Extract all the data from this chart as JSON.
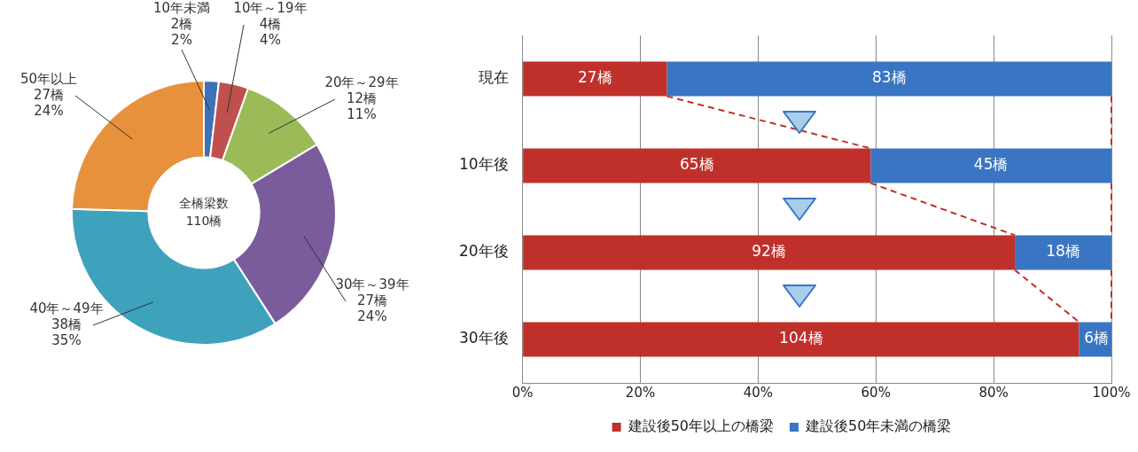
{
  "chart_data": [
    {
      "type": "donut",
      "categories": [
        "10年未満",
        "10年～19年",
        "20年～29年",
        "30年～39年",
        "40年～49年",
        "50年以上"
      ],
      "values": [
        2,
        4,
        12,
        27,
        38,
        27
      ],
      "colors": [
        "#3d72b8",
        "#c0504d",
        "#9bbb59",
        "#7a5c9c",
        "#3fa2bd",
        "#e8913d"
      ],
      "value_labels": [
        "2橋\n2%",
        "4橋\n4%",
        "12橋\n11%",
        "27橋\n24%",
        "38橋\n35%",
        "27橋\n24%"
      ],
      "annotations": [
        "全橋梁数\n110橋"
      ]
    },
    {
      "type": "bar",
      "orientation": "horizontal",
      "stacked": true,
      "categories": [
        "現在",
        "10年後",
        "20年後",
        "30年後"
      ],
      "series": [
        {
          "name": "建設後50年以上の橋梁",
          "color": "#c0302b",
          "values": [
            24.5,
            59.1,
            83.6,
            94.5
          ]
        },
        {
          "name": "建設後50年未満の橋梁",
          "color": "#3a75c4",
          "values": [
            75.5,
            40.9,
            16.4,
            5.5
          ]
        }
      ],
      "annotations": [
        "27橋",
        "65橋",
        "92橋",
        "104橋",
        "83橋",
        "45橋",
        "18橋",
        {
          "text": "6橋",
          "x": 100,
          "y": "30年後"
        }
      ],
      "xlim": [
        0,
        100
      ],
      "xticks": [
        {
          "value": 0,
          "label": "0%"
        },
        {
          "value": 20,
          "label": "20%"
        },
        {
          "value": 40,
          "label": "40%"
        },
        {
          "value": 60,
          "label": "60%"
        },
        {
          "value": 80,
          "label": "80%"
        },
        {
          "value": 100,
          "label": "100%"
        }
      ],
      "grid": "x",
      "legend": "bottom"
    }
  ]
}
